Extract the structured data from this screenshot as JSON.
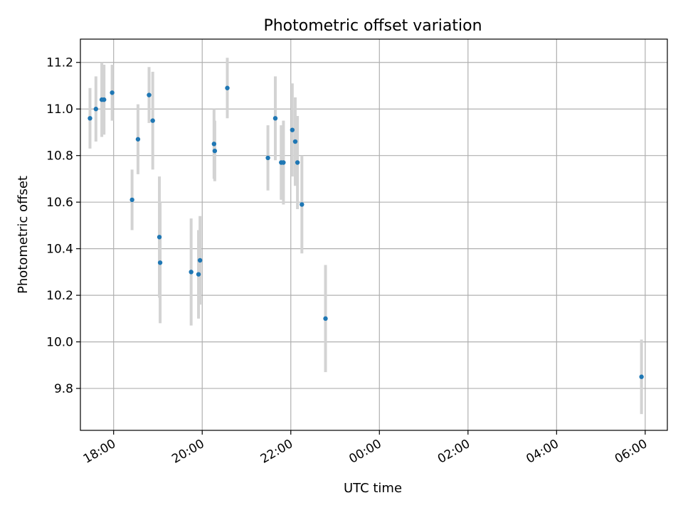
{
  "chart_data": {
    "type": "scatter",
    "title": "Photometric offset variation",
    "xlabel": "UTC time",
    "ylabel": "Photometric offset",
    "x_axis_kind": "time",
    "xlim": [
      "17:15",
      "06:30"
    ],
    "ylim": [
      9.62,
      11.3
    ],
    "x_ticks": [
      "18:00",
      "20:00",
      "22:00",
      "00:00",
      "02:00",
      "04:00",
      "06:00"
    ],
    "y_ticks": [
      9.8,
      10.0,
      10.2,
      10.4,
      10.6,
      10.8,
      11.0,
      11.2
    ],
    "grid": true,
    "point_color": "#1f77b4",
    "errorbar_color": "#d3d3d3",
    "points": [
      {
        "t": "17:28",
        "y": 10.96,
        "err": 0.13
      },
      {
        "t": "17:36",
        "y": 11.0,
        "err": 0.14
      },
      {
        "t": "17:44",
        "y": 11.04,
        "err": 0.16
      },
      {
        "t": "17:47",
        "y": 11.04,
        "err": 0.15
      },
      {
        "t": "17:58",
        "y": 11.07,
        "err": 0.12
      },
      {
        "t": "18:25",
        "y": 10.61,
        "err": 0.13
      },
      {
        "t": "18:33",
        "y": 10.87,
        "err": 0.15
      },
      {
        "t": "18:48",
        "y": 11.06,
        "err": 0.12
      },
      {
        "t": "18:53",
        "y": 10.95,
        "err": 0.21
      },
      {
        "t": "19:02",
        "y": 10.45,
        "err": 0.26
      },
      {
        "t": "19:03",
        "y": 10.34,
        "err": 0.26
      },
      {
        "t": "19:45",
        "y": 10.3,
        "err": 0.23
      },
      {
        "t": "19:55",
        "y": 10.29,
        "err": 0.19
      },
      {
        "t": "19:57",
        "y": 10.35,
        "err": 0.19
      },
      {
        "t": "20:16",
        "y": 10.85,
        "err": 0.15
      },
      {
        "t": "20:17",
        "y": 10.82,
        "err": 0.13
      },
      {
        "t": "20:34",
        "y": 11.09,
        "err": 0.13
      },
      {
        "t": "21:29",
        "y": 10.79,
        "err": 0.14
      },
      {
        "t": "21:39",
        "y": 10.96,
        "err": 0.18
      },
      {
        "t": "21:47",
        "y": 10.77,
        "err": 0.16
      },
      {
        "t": "21:50",
        "y": 10.77,
        "err": 0.18
      },
      {
        "t": "22:02",
        "y": 10.91,
        "err": 0.2
      },
      {
        "t": "22:06",
        "y": 10.86,
        "err": 0.19
      },
      {
        "t": "22:09",
        "y": 10.77,
        "err": 0.2
      },
      {
        "t": "22:15",
        "y": 10.59,
        "err": 0.21
      },
      {
        "t": "22:47",
        "y": 10.1,
        "err": 0.23
      },
      {
        "t": "05:55",
        "y": 9.85,
        "err": 0.16
      }
    ]
  }
}
